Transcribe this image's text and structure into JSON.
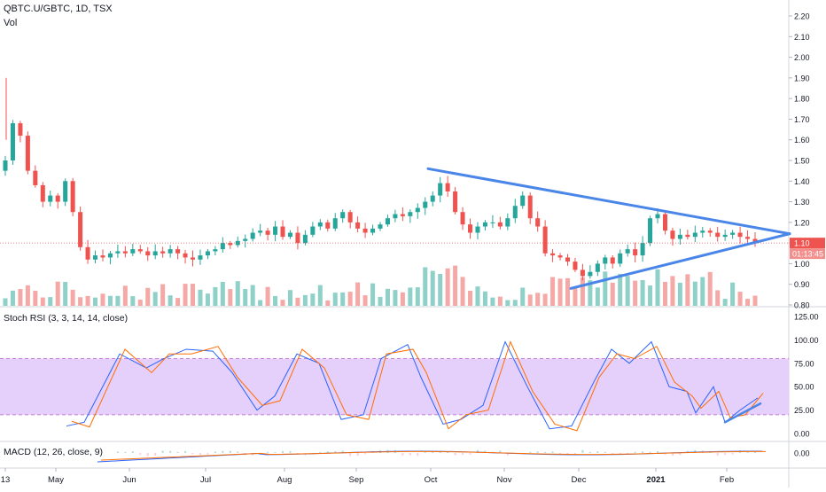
{
  "header": {
    "title": "QBTC.U/GBTC, 1D, TSX",
    "volume_label": "Vol"
  },
  "price_axis": {
    "ticks": [
      "2.20",
      "2.10",
      "2.00",
      "1.90",
      "1.80",
      "1.70",
      "1.60",
      "1.50",
      "1.40",
      "1.30",
      "1.20",
      "1.10",
      "1.00",
      "0.90",
      "0.80"
    ],
    "last_price": "1.10",
    "countdown": "01:13:45"
  },
  "rsi": {
    "label": "Stoch RSI (3, 3, 14, 14, close)",
    "ticks": [
      "125.00",
      "100.00",
      "75.00",
      "50.00",
      "25.00",
      "0.00"
    ],
    "upper_band": 80,
    "lower_band": 20
  },
  "macd": {
    "label": "MACD (12, 26, close, 9)",
    "ticks": [
      "0.00"
    ]
  },
  "time_axis": [
    "13",
    "May",
    "Jun",
    "Jul",
    "Aug",
    "Sep",
    "Oct",
    "Nov",
    "Dec",
    "2021",
    "Feb"
  ],
  "colors": {
    "up": "#26a69a",
    "down": "#ef5350",
    "trendline": "#4a86e8",
    "k_line": "#2962ff",
    "d_line": "#ff6d00",
    "band_fill": "#e1c8fa"
  },
  "chart_data": {
    "type": "candlestick",
    "y_range": [
      0.8,
      2.25
    ],
    "trendlines": [
      {
        "from": [
          "Oct",
          1.46
        ],
        "to": [
          "Feb",
          1.14
        ]
      },
      {
        "from": [
          "Dec",
          0.88
        ],
        "to": [
          "Feb",
          1.14
        ]
      }
    ],
    "closes": [
      1.5,
      1.68,
      1.62,
      1.45,
      1.38,
      1.3,
      1.33,
      1.3,
      1.4,
      1.25,
      1.08,
      1.02,
      1.04,
      1.03,
      1.05,
      1.06,
      1.05,
      1.07,
      1.06,
      1.04,
      1.06,
      1.05,
      1.07,
      1.05,
      1.03,
      1.02,
      1.04,
      1.06,
      1.07,
      1.1,
      1.09,
      1.11,
      1.12,
      1.15,
      1.16,
      1.14,
      1.18,
      1.13,
      1.15,
      1.1,
      1.14,
      1.18,
      1.2,
      1.17,
      1.22,
      1.25,
      1.2,
      1.17,
      1.15,
      1.17,
      1.19,
      1.22,
      1.24,
      1.23,
      1.25,
      1.27,
      1.3,
      1.33,
      1.39,
      1.35,
      1.25,
      1.19,
      1.15,
      1.18,
      1.2,
      1.2,
      1.18,
      1.22,
      1.28,
      1.33,
      1.22,
      1.18,
      1.05,
      1.04,
      1.03,
      1.01,
      0.97,
      0.94,
      0.96,
      1.0,
      1.03,
      1.0,
      1.05,
      1.07,
      1.04,
      1.1,
      1.22,
      1.24,
      1.16,
      1.12,
      1.14,
      1.13,
      1.15,
      1.16,
      1.15,
      1.13,
      1.14,
      1.15,
      1.13,
      1.12,
      1.1
    ]
  }
}
